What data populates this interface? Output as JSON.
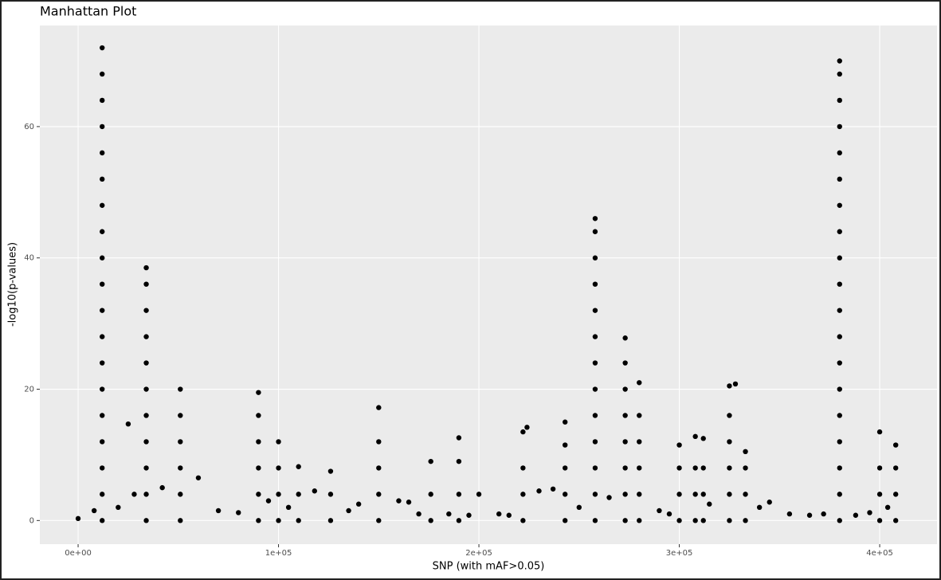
{
  "chart_data": {
    "type": "scatter",
    "title": "Manhattan Plot",
    "x_label": "SNP (with mAF>0.05)",
    "y_label": "-log10(p-values)",
    "color": "#000000",
    "grid": true,
    "xlim": [
      -19100,
      428600
    ],
    "ylim": [
      -3.6,
      75.4
    ],
    "xticks": [
      {
        "value": 0,
        "label": "0e+00"
      },
      {
        "value": 100000,
        "label": "1e+05"
      },
      {
        "value": 200000,
        "label": "2e+05"
      },
      {
        "value": 300000,
        "label": "3e+05"
      },
      {
        "value": 400000,
        "label": "4e+05"
      }
    ],
    "yticks": [
      0,
      20,
      40,
      60
    ],
    "x": [
      0,
      8000,
      20000,
      28000,
      42000,
      60000,
      70000,
      80000,
      95000,
      105000,
      118000,
      135000,
      140000,
      160000,
      165000,
      170000,
      185000,
      195000,
      210000,
      215000,
      230000,
      237000,
      250000,
      265000,
      290000,
      295000,
      315000,
      340000,
      345000,
      355000,
      365000,
      372000,
      388000,
      395000,
      404000,
      12000,
      12000,
      12000,
      12000,
      12000,
      12000,
      12000,
      12000,
      12000,
      12000,
      12000,
      12000,
      12000,
      12000,
      12000,
      12000,
      12000,
      12000,
      12000,
      34000,
      34000,
      34000,
      34000,
      34000,
      34000,
      34000,
      34000,
      34000,
      34000,
      34000,
      51000,
      51000,
      51000,
      51000,
      51000,
      51000,
      90000,
      90000,
      90000,
      90000,
      90000,
      90000,
      100000,
      100000,
      100000,
      100000,
      110000,
      110000,
      110000,
      126000,
      126000,
      126000,
      150000,
      150000,
      150000,
      150000,
      150000,
      176000,
      176000,
      176000,
      190000,
      190000,
      190000,
      190000,
      222000,
      222000,
      222000,
      222000,
      224000,
      243000,
      243000,
      243000,
      243000,
      243000,
      258000,
      258000,
      258000,
      258000,
      258000,
      258000,
      258000,
      258000,
      258000,
      258000,
      258000,
      258000,
      258000,
      273000,
      273000,
      273000,
      273000,
      273000,
      273000,
      273000,
      273000,
      280000,
      280000,
      280000,
      280000,
      280000,
      280000,
      300000,
      300000,
      300000,
      300000,
      308000,
      308000,
      308000,
      308000,
      312000,
      312000,
      312000,
      312000,
      325000,
      325000,
      325000,
      325000,
      325000,
      325000,
      328000,
      333000,
      333000,
      333000,
      333000,
      380000,
      380000,
      380000,
      380000,
      380000,
      380000,
      380000,
      380000,
      380000,
      380000,
      380000,
      380000,
      380000,
      380000,
      380000,
      380000,
      380000,
      380000,
      380000,
      400000,
      400000,
      400000,
      400000,
      408000,
      408000,
      408000,
      408000,
      25000,
      200000
    ],
    "values": [
      0.3,
      1.5,
      2,
      4,
      5,
      6.5,
      1.5,
      1.2,
      3,
      2,
      4.5,
      1.5,
      2.5,
      3,
      2.8,
      1,
      1,
      0.8,
      1,
      0.8,
      4.5,
      4.8,
      2,
      3.5,
      1.5,
      1,
      2.5,
      2,
      2.8,
      1,
      0.8,
      1,
      0.8,
      1.2,
      2,
      0,
      4,
      8,
      12,
      16,
      20,
      24,
      28,
      32,
      36,
      40,
      44,
      48,
      52,
      56,
      60,
      64,
      68,
      72,
      0,
      4,
      8,
      12,
      16,
      20,
      24,
      28,
      32,
      36,
      38.5,
      0,
      4,
      8,
      12,
      16,
      20,
      0,
      4,
      8,
      12,
      16,
      19.5,
      0,
      4,
      8,
      12,
      0,
      4,
      8.2,
      0,
      4,
      7.5,
      0,
      4,
      8,
      12,
      17.2,
      0,
      4,
      9,
      0,
      4,
      9,
      12.6,
      0,
      4,
      8,
      13.5,
      14.2,
      0,
      4,
      8,
      11.5,
      15,
      0,
      4,
      8,
      12,
      16,
      20,
      24,
      28,
      32,
      36,
      40,
      44,
      46,
      0,
      4,
      8,
      12,
      16,
      20,
      24,
      27.8,
      0,
      4,
      8,
      12,
      16,
      21,
      0,
      4,
      8,
      11.5,
      0,
      4,
      8,
      12.8,
      0,
      4,
      8,
      12.5,
      0,
      4,
      8,
      12,
      16,
      20.5,
      20.8,
      0,
      4,
      8,
      10.5,
      0,
      4,
      8,
      12,
      16,
      20,
      24,
      28,
      32,
      36,
      40,
      44,
      48,
      52,
      56,
      60,
      64,
      68,
      70,
      0,
      4,
      8,
      13.5,
      0,
      4,
      8,
      11.5,
      14.7,
      4
    ]
  }
}
